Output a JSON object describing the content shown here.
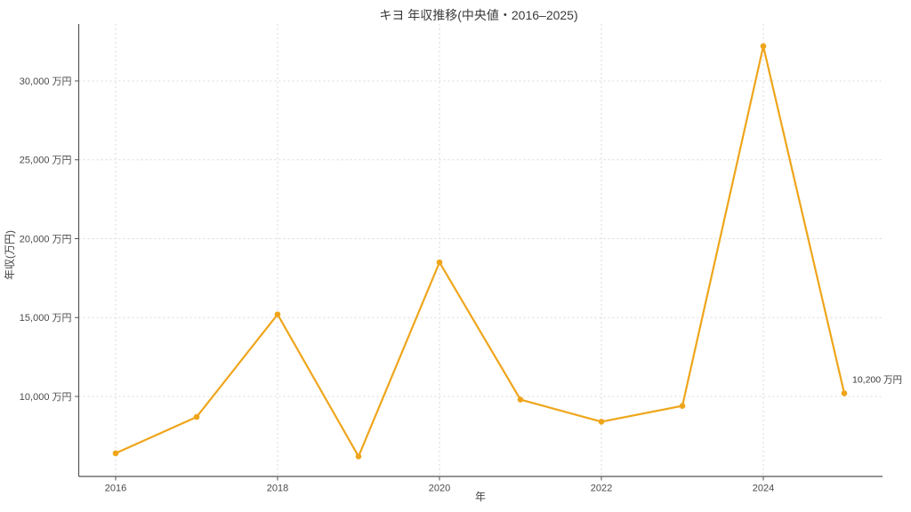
{
  "chart_data": {
    "type": "line",
    "title": "キヨ 年収推移(中央値・2016–2025)",
    "xlabel": "年",
    "ylabel": "年収(万円)",
    "x": [
      2016,
      2017,
      2018,
      2019,
      2020,
      2021,
      2022,
      2023,
      2024,
      2025
    ],
    "values": [
      6400,
      8700,
      15200,
      6200,
      18500,
      9800,
      8400,
      9400,
      32200,
      10200
    ],
    "x_ticks": [
      2016,
      2018,
      2020,
      2022,
      2024
    ],
    "x_tick_labels": [
      "2016",
      "2018",
      "2020",
      "2022",
      "2024"
    ],
    "y_ticks": [
      10000,
      15000,
      20000,
      25000,
      30000
    ],
    "y_tick_labels": [
      "10,000 万円",
      "15,000 万円",
      "20,000 万円",
      "25,000 万円",
      "30,000 万円"
    ],
    "xlim": [
      2015.55,
      2025.47
    ],
    "ylim": [
      4930,
      33600
    ],
    "grid": true,
    "legend": false,
    "line_color": "#EFA51A",
    "marker_color": "#EFA51A",
    "background_color": "#ffffff",
    "annotation": {
      "text": "10,200 万円",
      "x": 2025,
      "y": 10200
    }
  }
}
